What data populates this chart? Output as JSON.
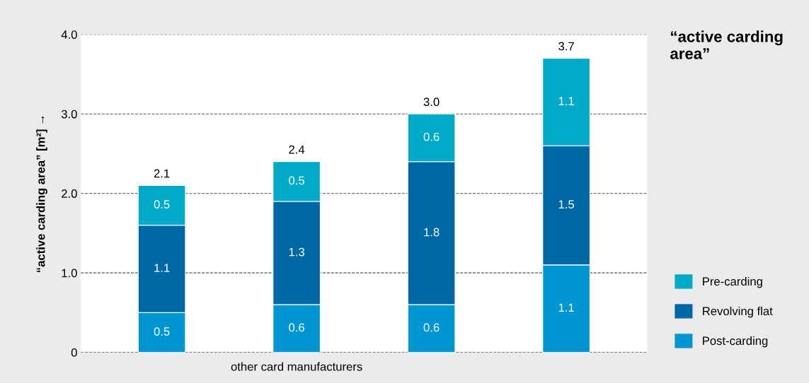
{
  "chart_data": {
    "type": "bar",
    "stacked": true,
    "title": "“active carding area”",
    "ylabel": "“active carding area” [m²] →",
    "categories": [
      null,
      "other card manufacturers",
      null,
      null
    ],
    "series": [
      {
        "name": "Post-carding",
        "color": "#0096d2",
        "values": [
          0.5,
          0.6,
          0.6,
          1.1
        ]
      },
      {
        "name": "Revolving flat",
        "color": "#0068a5",
        "values": [
          1.1,
          1.3,
          1.8,
          1.5
        ]
      },
      {
        "name": "Pre-carding",
        "color": "#00aac8",
        "values": [
          0.5,
          0.5,
          0.6,
          1.1
        ]
      }
    ],
    "data_labels": true,
    "totals": [
      "2.1",
      "2.4",
      "3.0",
      "3.7"
    ],
    "ylim": [
      0,
      4.0
    ],
    "yticks": [
      0,
      {
        "value": 1.0,
        "label": "1.0"
      },
      {
        "value": 2.0,
        "label": "2.0"
      },
      {
        "value": 3.0,
        "label": "3.0"
      },
      {
        "value": 4.0,
        "label": "4.0"
      }
    ],
    "grid": "y",
    "legend": "right"
  }
}
